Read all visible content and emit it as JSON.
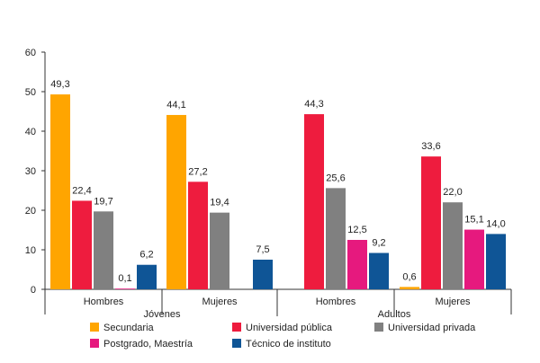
{
  "chart_data": {
    "type": "bar",
    "title": "",
    "xlabel": "",
    "ylabel": "",
    "ylim": [
      0,
      60
    ],
    "yticks": [
      0,
      10,
      20,
      30,
      40,
      50,
      60
    ],
    "groups": [
      "Jóvenes",
      "Adultos"
    ],
    "categories": [
      "Hombres",
      "Mujeres",
      "Hombres",
      "Mujeres"
    ],
    "category_group": [
      0,
      0,
      1,
      1
    ],
    "legend_position": "bottom",
    "grid": false,
    "series": [
      {
        "name": "Secundaria",
        "color": "#FFA500",
        "values": [
          49.3,
          44.1,
          null,
          0.6
        ],
        "labels": [
          "49,3",
          "44,1",
          "",
          "0,6"
        ]
      },
      {
        "name": "Universidad pública",
        "color": "#EE1C3E",
        "values": [
          22.4,
          27.2,
          44.3,
          33.6
        ],
        "labels": [
          "22,4",
          "27,2",
          "44,3",
          "33,6"
        ]
      },
      {
        "name": "Universidad privada",
        "color": "#808080",
        "values": [
          19.7,
          19.4,
          25.6,
          22.0
        ],
        "labels": [
          "19,7",
          "19,4",
          "25,6",
          "22,0"
        ]
      },
      {
        "name": "Postgrado, Maestría",
        "color": "#E6197E",
        "values": [
          0.1,
          null,
          12.5,
          15.1
        ],
        "labels": [
          "0,1",
          "",
          "12,5",
          "15,1"
        ]
      },
      {
        "name": "Técnico de instituto",
        "color": "#0F5596",
        "values": [
          6.2,
          7.5,
          9.2,
          14.0
        ],
        "labels": [
          "6,2",
          "7,5",
          "9,2",
          "14,0"
        ]
      }
    ]
  }
}
